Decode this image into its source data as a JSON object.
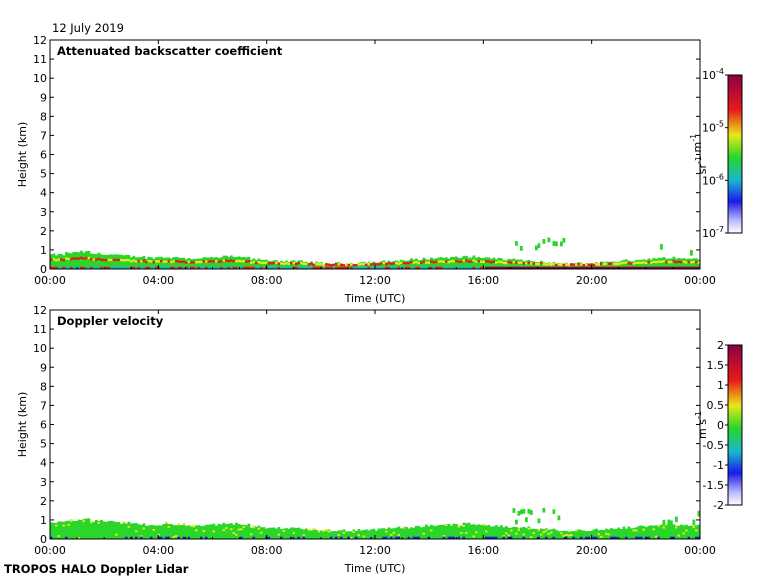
{
  "date_label": "12 July 2019",
  "footer_label": "TROPOS HALO Doppler Lidar",
  "colors": {
    "black": "#000000",
    "dark_red": "#8b0046",
    "red": "#e81a1a",
    "yellow": "#e8e81a",
    "green": "#2ad62a",
    "cyan": "#1ab4d2",
    "blue": "#1a1ae8",
    "light_blue": "#d8d8ff"
  },
  "chart_data": [
    {
      "type": "heatmap",
      "title": "Attenuated backscatter coefficient",
      "xlabel": "Time (UTC)",
      "ylabel": "Height (km)",
      "x_ticks": [
        "00:00",
        "04:00",
        "08:00",
        "12:00",
        "16:00",
        "20:00",
        "00:00"
      ],
      "y_ticks": [
        "0",
        "1",
        "2",
        "3",
        "4",
        "5",
        "6",
        "7",
        "8",
        "9",
        "10",
        "11",
        "12"
      ],
      "xlim_hours": [
        0,
        24
      ],
      "ylim_km": [
        0,
        12
      ],
      "colorbar": {
        "scale": "log",
        "range": [
          1e-07,
          0.0001
        ],
        "ticks": [
          {
            "base": "10",
            "exp": "-4",
            "value": -4
          },
          {
            "base": "10",
            "exp": "-5",
            "value": -5
          },
          {
            "base": "10",
            "exp": "-6",
            "value": -6
          },
          {
            "base": "10",
            "exp": "-7",
            "value": -7
          }
        ],
        "unit_parts": [
          {
            "t": "sr",
            "sup": "-1"
          },
          {
            "t": " m",
            "sup": "-1"
          }
        ]
      },
      "layer_top_km_samples": [
        0.75,
        0.85,
        0.9,
        0.8,
        0.75,
        0.7,
        0.65,
        0.6,
        0.62,
        0.6,
        0.55,
        0.58,
        0.6,
        0.65,
        0.6,
        0.5,
        0.45,
        0.42,
        0.4,
        0.35,
        0.3,
        0.3,
        0.3,
        0.35,
        0.35,
        0.4,
        0.45,
        0.5,
        0.55,
        0.6,
        0.6,
        0.65,
        0.6,
        0.55,
        0.5,
        0.45,
        0.4,
        0.35,
        0.3,
        0.3,
        0.3,
        0.35,
        0.4,
        0.45,
        0.5,
        0.55,
        0.6,
        0.55,
        0.55
      ]
    },
    {
      "type": "heatmap",
      "title": "Doppler velocity",
      "xlabel": "Time (UTC)",
      "ylabel": "Height (km)",
      "x_ticks": [
        "00:00",
        "04:00",
        "08:00",
        "12:00",
        "16:00",
        "20:00",
        "00:00"
      ],
      "y_ticks": [
        "0",
        "1",
        "2",
        "3",
        "4",
        "5",
        "6",
        "7",
        "8",
        "9",
        "10",
        "11",
        "12"
      ],
      "xlim_hours": [
        0,
        24
      ],
      "ylim_km": [
        0,
        12
      ],
      "colorbar": {
        "scale": "linear",
        "range": [
          -2,
          2
        ],
        "ticks": [
          "2",
          "1.5",
          "1",
          "0.5",
          "0",
          "-0.5",
          "-1",
          "-1.5",
          "-2"
        ],
        "unit_parts": [
          {
            "t": "m s",
            "sup": "-1"
          }
        ]
      }
    }
  ]
}
